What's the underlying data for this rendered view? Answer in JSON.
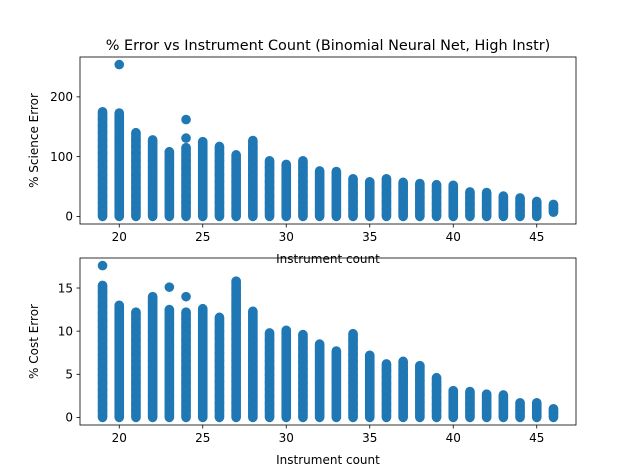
{
  "figure": {
    "background": "#ffffff",
    "marker_color": "#1f77b4"
  },
  "chart_data": [
    {
      "type": "scatter",
      "title": "% Error vs Instrument Count (Binomial Neural Net, High Instr)",
      "xlabel": "Instrument count",
      "ylabel": "% Science Error",
      "xlim": [
        17.65,
        47.35
      ],
      "ylim": [
        -12.7,
        266.7
      ],
      "xticks": [
        20,
        25,
        30,
        35,
        40,
        45
      ],
      "yticks": [
        0,
        100,
        200
      ],
      "grid": false,
      "series": [
        {
          "x": [
            19,
            20,
            21,
            22,
            23,
            24,
            25,
            26,
            27,
            28,
            29,
            30,
            31,
            32,
            33,
            34,
            35,
            36,
            37,
            38,
            39,
            40,
            41,
            42,
            43,
            44,
            45,
            46
          ],
          "min": [
            0,
            0,
            0,
            0,
            0,
            0,
            0,
            0,
            0,
            0,
            0,
            0,
            0,
            0,
            0,
            0,
            0,
            0,
            0,
            0,
            0,
            0,
            0,
            0,
            0,
            0,
            0,
            7
          ],
          "max": [
            175,
            173,
            140,
            128,
            108,
            115,
            125,
            117,
            103,
            127,
            93,
            87,
            93,
            76,
            75,
            63,
            58,
            63,
            57,
            55,
            53,
            52,
            41,
            40,
            34,
            31,
            25,
            20
          ],
          "outliers": [
            {
              "x": 20,
              "y": 254
            },
            {
              "x": 24,
              "y": 162
            },
            {
              "x": 24,
              "y": 131
            },
            {
              "x": 28,
              "y": 113
            },
            {
              "x": 23,
              "y": 108
            }
          ]
        }
      ]
    },
    {
      "type": "scatter",
      "title": "",
      "xlabel": "Instrument count",
      "ylabel": "% Cost Error",
      "xlim": [
        17.65,
        47.35
      ],
      "ylim": [
        -0.88,
        18.48
      ],
      "xticks": [
        20,
        25,
        30,
        35,
        40,
        45
      ],
      "yticks": [
        0,
        5,
        10,
        15
      ],
      "grid": false,
      "series": [
        {
          "x": [
            19,
            20,
            21,
            22,
            23,
            24,
            25,
            26,
            27,
            28,
            29,
            30,
            31,
            32,
            33,
            34,
            35,
            36,
            37,
            38,
            39,
            40,
            41,
            42,
            43,
            44,
            45,
            46
          ],
          "min": [
            0,
            0,
            0,
            0,
            0,
            0,
            0,
            0,
            0,
            0,
            0,
            0,
            0,
            0,
            0,
            0,
            0,
            0,
            0,
            0,
            0,
            0,
            0,
            0,
            0,
            0,
            0,
            0
          ],
          "max": [
            15.3,
            13.0,
            12.2,
            14.0,
            12.5,
            12.2,
            12.6,
            11.6,
            15.8,
            12.3,
            9.8,
            10.1,
            9.6,
            8.5,
            7.7,
            9.7,
            7.2,
            6.2,
            6.5,
            6.0,
            4.6,
            3.1,
            3.0,
            2.7,
            2.6,
            1.7,
            1.7,
            1.0
          ],
          "outliers": [
            {
              "x": 19,
              "y": 17.6
            },
            {
              "x": 23,
              "y": 15.1
            },
            {
              "x": 24,
              "y": 14.0
            },
            {
              "x": 27,
              "y": 13.0
            },
            {
              "x": 22,
              "y": 13.5
            }
          ]
        }
      ]
    }
  ]
}
